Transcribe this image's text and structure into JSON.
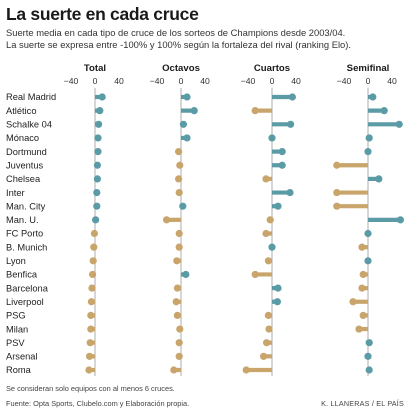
{
  "header": {
    "title": "La suerte en cada cruce",
    "subtitle_line1": "Suerte media en cada tipo de cruce de los sorteos de Champions desde  2003/04.",
    "subtitle_line2": "La suerte se expresa entre -100% y 100% según la fortaleza del rival (ranking Elo)."
  },
  "footer": {
    "note": "Se consideran solo equipos con al menos 6 cruces.",
    "source": "Fuente: Opta Sports, Clubelo.com y Elaboración propia.",
    "credit": "K. LLANERAS  /  EL PAÍS"
  },
  "colors": {
    "positive": "#5a9ba5",
    "negative": "#c9a46b",
    "axis": "#9a9a9a",
    "text": "#222222"
  },
  "chart_data": {
    "type": "dot",
    "categories": [
      "Real Madrid",
      "Atlético",
      "Schalke 04",
      "Mónaco",
      "Dortmund",
      "Juventus",
      "Chelsea",
      "Inter",
      "Man. City",
      "Man. U.",
      "FC Porto",
      "B. Munich",
      "Lyon",
      "Benfica",
      "Barcelona",
      "Liverpool",
      "PSG",
      "Milan",
      "PSV",
      "Arsenal",
      "Roma"
    ],
    "x_ticks": [
      -40,
      0,
      40
    ],
    "x_tick_labels": [
      "−40",
      "0",
      "40"
    ],
    "xlim": [
      -60,
      60
    ],
    "panels": [
      {
        "name": "Total",
        "values": [
          12,
          8,
          6,
          5,
          5,
          4,
          4,
          3,
          3,
          1,
          -1,
          -2,
          -3,
          -4,
          -5,
          -6,
          -7,
          -7,
          -8,
          -9,
          -10
        ]
      },
      {
        "name": "Octavos",
        "values": [
          10,
          22,
          4,
          10,
          -4,
          -2,
          -4,
          -3,
          3,
          -24,
          -3,
          -3,
          -7,
          8,
          -6,
          -8,
          -6,
          -2,
          -3,
          -3,
          -12
        ]
      },
      {
        "name": "Cuartos",
        "values": [
          34,
          -28,
          31,
          0,
          17,
          17,
          -10,
          30,
          10,
          -3,
          -10,
          0,
          -6,
          -28,
          10,
          9,
          -6,
          -5,
          -9,
          -14,
          -43
        ]
      },
      {
        "name": "Semifinal",
        "values": [
          8,
          27,
          52,
          2,
          0,
          -52,
          18,
          -52,
          -52,
          54,
          0,
          -10,
          0,
          -8,
          -10,
          -25,
          -8,
          -15,
          2,
          0,
          2
        ]
      }
    ]
  }
}
